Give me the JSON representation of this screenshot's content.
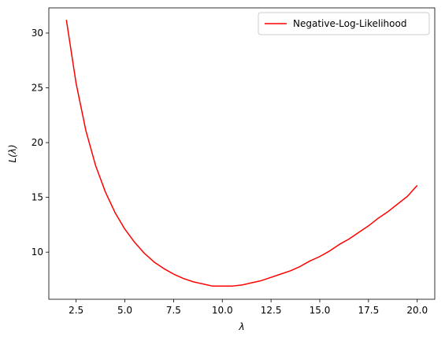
{
  "chart_data": {
    "type": "line",
    "xlabel": "λ",
    "ylabel": "L(λ)",
    "xlim": [
      1.1,
      20.9
    ],
    "ylim": [
      5.7,
      32.3
    ],
    "xticks": [
      2.5,
      5.0,
      7.5,
      10.0,
      12.5,
      15.0,
      17.5,
      20.0
    ],
    "xtick_labels": [
      "2.5",
      "5.0",
      "7.5",
      "10.0",
      "12.5",
      "15.0",
      "17.5",
      "20.0"
    ],
    "yticks": [
      10,
      15,
      20,
      25,
      30
    ],
    "ytick_labels": [
      "10",
      "15",
      "20",
      "25",
      "30"
    ],
    "grid": false,
    "legend_position": "top-right",
    "series": [
      {
        "name": "Negative-Log-Likelihood",
        "color": "#ff0000",
        "x": [
          2.0,
          2.5,
          3.0,
          3.5,
          4.0,
          4.5,
          5.0,
          5.5,
          6.0,
          6.5,
          7.0,
          7.5,
          8.0,
          8.5,
          9.0,
          9.5,
          10.0,
          10.5,
          11.0,
          11.5,
          12.0,
          12.5,
          13.0,
          13.5,
          14.0,
          14.5,
          15.0,
          15.5,
          16.0,
          16.5,
          17.0,
          17.5,
          18.0,
          18.5,
          19.0,
          19.5,
          20.0
        ],
        "y": [
          31.2,
          25.4,
          21.1,
          17.9,
          15.5,
          13.6,
          12.1,
          10.9,
          9.9,
          9.1,
          8.5,
          8.0,
          7.6,
          7.3,
          7.1,
          6.9,
          6.9,
          6.9,
          7.0,
          7.2,
          7.4,
          7.7,
          8.0,
          8.3,
          8.7,
          9.2,
          9.6,
          10.1,
          10.7,
          11.2,
          11.8,
          12.4,
          13.1,
          13.7,
          14.4,
          15.1,
          16.1
        ]
      }
    ]
  }
}
